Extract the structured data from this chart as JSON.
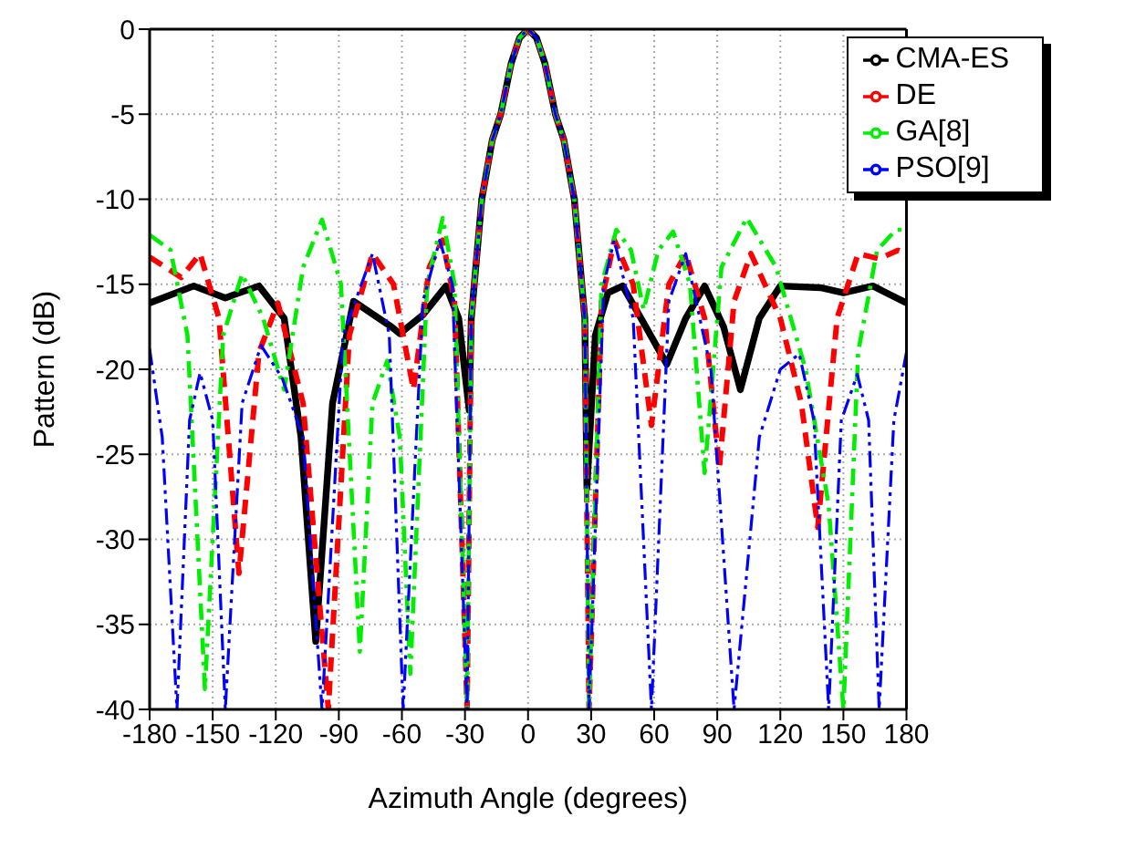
{
  "chart_data": {
    "type": "line",
    "xlabel": "Azimuth Angle (degrees)",
    "ylabel": "Pattern (dB)",
    "xlim": [
      -180,
      180
    ],
    "xticks": [
      -180,
      -150,
      -120,
      -90,
      -60,
      -30,
      0,
      30,
      60,
      90,
      120,
      150,
      180
    ],
    "ylim": [
      -40,
      0
    ],
    "yticks": [
      -40,
      -35,
      -30,
      -25,
      -20,
      -15,
      -10,
      -5,
      0
    ],
    "grid": true,
    "legend": "top right",
    "marker": "none",
    "series": [
      {
        "name": "CMA-ES",
        "color": "#000000",
        "line_style": "solid",
        "x": [
          -180,
          -159,
          -144,
          -128,
          -116,
          -108,
          -101,
          -93,
          -83,
          -65,
          -61,
          -50,
          -39,
          -33,
          -28,
          -27,
          -22,
          -17,
          -13,
          -8,
          -4,
          0,
          4,
          8,
          13,
          17,
          22,
          27,
          28,
          32,
          38,
          45,
          56,
          66,
          75,
          84,
          93,
          101,
          110,
          120,
          139,
          150,
          164,
          172,
          180
        ],
        "values": [
          -16.1,
          -15.1,
          -15.8,
          -15.1,
          -17,
          -24,
          -36,
          -22,
          -16,
          -17.5,
          -17.9,
          -16.8,
          -15.1,
          -17,
          -22.4,
          -17,
          -10,
          -6.5,
          -5,
          -2,
          -0.5,
          0,
          -0.5,
          -2,
          -5,
          -6.5,
          -10,
          -17,
          -27,
          -18,
          -15.5,
          -15.1,
          -17.5,
          -19.7,
          -17,
          -15.1,
          -17.5,
          -21.2,
          -17,
          -15.1,
          -15.2,
          -15.5,
          -15.1,
          -15.6,
          -16.1
        ]
      },
      {
        "name": "DE",
        "color": "#ff0000",
        "line_style": "dashed",
        "x": [
          -180,
          -165,
          -156,
          -147,
          -137.5,
          -128,
          -119,
          -107,
          -95,
          -85,
          -74,
          -64,
          -54.5,
          -47,
          -40.6,
          -35,
          -29,
          -27,
          -22,
          -17,
          -13,
          -8,
          -4,
          0,
          4,
          8,
          13,
          17,
          22,
          27,
          29,
          35,
          41,
          50,
          58.7,
          67,
          75,
          84,
          91,
          98,
          106,
          120,
          130,
          137.8,
          147,
          157,
          167,
          176,
          180
        ],
        "values": [
          -13.4,
          -14.6,
          -13.2,
          -17,
          -32,
          -19,
          -16.1,
          -22,
          -40,
          -18,
          -13.2,
          -15,
          -21.2,
          -14,
          -12.4,
          -16,
          -40,
          -17,
          -10,
          -6.5,
          -5,
          -2,
          -0.5,
          0,
          -0.5,
          -2,
          -5,
          -6.5,
          -10,
          -17,
          -40,
          -16,
          -12.4,
          -15,
          -23.3,
          -15,
          -13.2,
          -17,
          -25.8,
          -16,
          -13.2,
          -17,
          -22,
          -29.3,
          -17,
          -13.2,
          -13.5,
          -13,
          -13.2
        ]
      },
      {
        "name": "GA[8]",
        "color": "#00ee00",
        "line_style": "dashdot",
        "x": [
          -180,
          -170,
          -162,
          -153.7,
          -145,
          -136,
          -126,
          -116,
          -107,
          -98,
          -89,
          -80,
          -74,
          -67,
          -61,
          -56,
          -48,
          -40.6,
          -35,
          -29,
          -27,
          -22,
          -17,
          -13,
          -8,
          -4,
          0,
          4,
          8,
          13,
          17,
          22,
          27,
          29,
          35,
          42,
          49,
          55,
          62,
          69,
          77,
          84,
          92,
          104,
          118,
          132,
          143,
          150,
          157,
          166,
          175,
          180
        ],
        "values": [
          -12.1,
          -13,
          -18,
          -38.8,
          -18,
          -14.4,
          -17,
          -21.2,
          -14,
          -11.2,
          -15,
          -36.6,
          -22,
          -19.5,
          -24,
          -37.9,
          -15,
          -11.1,
          -15,
          -40,
          -17,
          -10,
          -6.5,
          -5,
          -2,
          -0.5,
          0,
          -0.5,
          -2,
          -5,
          -6.5,
          -10,
          -17,
          -40,
          -15,
          -11.8,
          -13,
          -16.5,
          -13,
          -11.9,
          -15,
          -26.1,
          -14,
          -11.1,
          -14,
          -20,
          -28,
          -40,
          -19,
          -13,
          -11.8,
          -11.8
        ]
      },
      {
        "name": "PSO[9]",
        "color": "#0000ff",
        "line_style": "dashdotdot",
        "x": [
          -180,
          -174,
          -167,
          -161,
          -156,
          -150,
          -144,
          -136,
          -127,
          -117,
          -107,
          -98,
          -88,
          -74,
          -66,
          -59.4,
          -50,
          -42,
          -36,
          -29,
          -27,
          -22,
          -17,
          -13,
          -8,
          -4,
          0,
          4,
          8,
          13,
          17,
          22,
          27,
          29,
          36,
          41,
          50,
          58.7,
          67,
          75,
          87,
          98,
          110,
          120,
          129,
          136,
          143,
          149,
          156.6,
          162,
          167,
          174,
          180
        ],
        "values": [
          -18.8,
          -24,
          -40,
          -23,
          -20.2,
          -23,
          -40,
          -22,
          -18.6,
          -20.5,
          -24,
          -40,
          -18,
          -13.2,
          -18,
          -40,
          -16,
          -12.4,
          -15,
          -40,
          -17,
          -10,
          -6.5,
          -5,
          -2,
          -0.5,
          0,
          -0.5,
          -2,
          -5,
          -6.5,
          -10,
          -17,
          -40,
          -15,
          -12.4,
          -17,
          -40,
          -16,
          -13.2,
          -20,
          -40,
          -24,
          -20,
          -19.1,
          -23,
          -40,
          -23,
          -20.3,
          -23,
          -40,
          -23,
          -19
        ]
      }
    ]
  }
}
